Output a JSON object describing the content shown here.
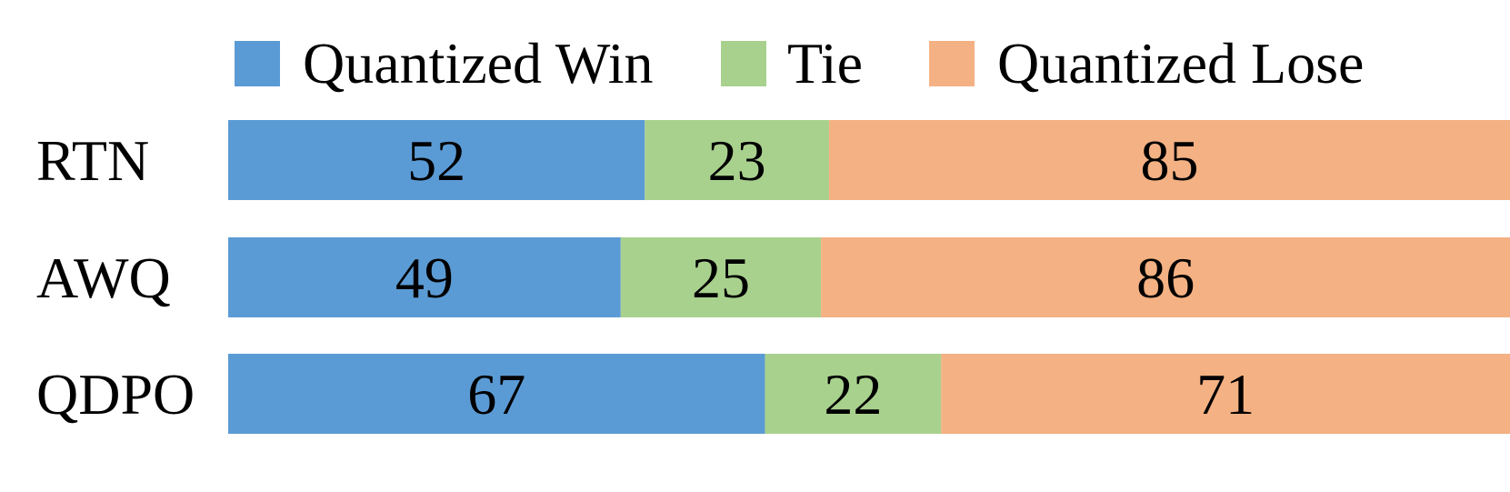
{
  "chart_data": {
    "type": "bar",
    "orientation": "horizontal",
    "stacked": true,
    "categories": [
      "RTN",
      "AWQ",
      "QDPO"
    ],
    "series": [
      {
        "name": "Quantized Win",
        "color": "#5b9bd5",
        "values": [
          52,
          49,
          67
        ]
      },
      {
        "name": "Tie",
        "color": "#a9d18e",
        "values": [
          23,
          25,
          22
        ]
      },
      {
        "name": "Quantized Lose",
        "color": "#f4b183",
        "values": [
          85,
          86,
          71
        ]
      }
    ],
    "xlim": [
      0,
      160
    ],
    "grid": false,
    "legend_position": "top"
  }
}
